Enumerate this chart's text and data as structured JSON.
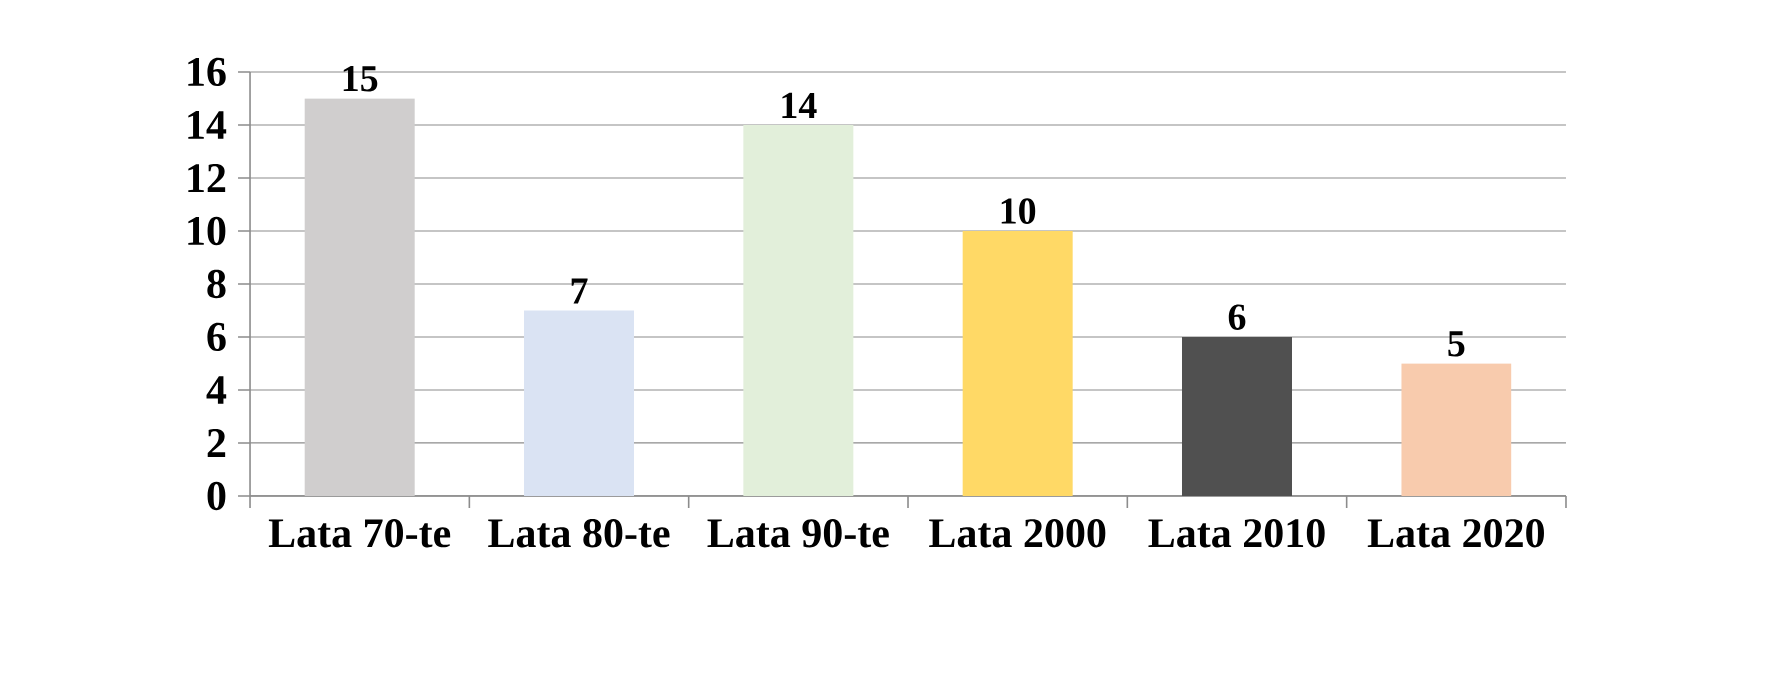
{
  "chart_data": {
    "type": "bar",
    "categories": [
      "Lata 70-te",
      "Lata 80-te",
      "Lata 90-te",
      "Lata 2000",
      "Lata 2010",
      "Lata 2020"
    ],
    "values": [
      15,
      7,
      14,
      10,
      6,
      5
    ],
    "colors": [
      "#d0cece",
      "#dae3f3",
      "#e2efda",
      "#ffd966",
      "#505050",
      "#f8cbad"
    ],
    "ylim": [
      0,
      16
    ],
    "yticks": [
      0,
      2,
      4,
      6,
      8,
      10,
      12,
      14,
      16
    ],
    "grid": "y",
    "data_labels": true
  }
}
